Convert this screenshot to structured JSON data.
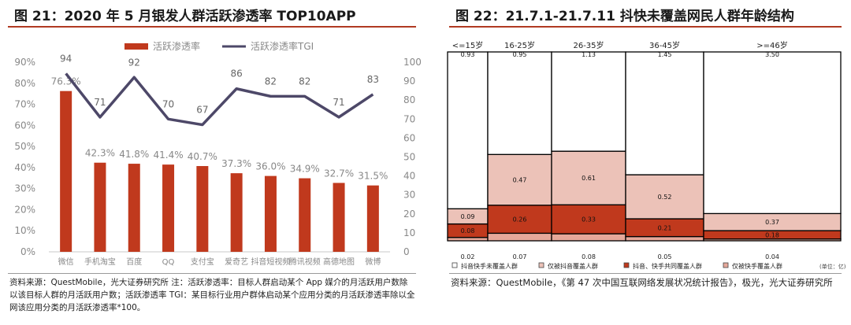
{
  "left": {
    "title": "图 21：2020 年 5 月银发人群活跃渗透率 TOP10APP",
    "note": "资料来源：QuestMobile，光大证券研究所 注：活跃渗透率：目标人群启动某个 App 媒介的月活跃用户数除以该目标人群的月活跃用户数；活跃渗透率 TGI：某目标行业用户群体启动某个应用分类的月活跃渗透率除以全网该应用分类的月活跃渗透率*100。"
  },
  "right": {
    "title": "图 22：21.7.1-21.7.11 抖快未覆盖网民人群年龄结构",
    "note": "资料来源：QuestMobile，《第 47 次中国互联网络发展状况统计报告》，极光，光大证券研究所"
  },
  "chart_data": [
    {
      "type": "bar",
      "categories": [
        "微信",
        "手机淘宝",
        "百度",
        "QQ",
        "支付宝",
        "爱奇艺",
        "抖音短视频",
        "腾讯视频",
        "高德地图",
        "微博"
      ],
      "series": [
        {
          "name": "活跃渗透率",
          "type": "bar",
          "axis": "left",
          "values": [
            76.3,
            42.3,
            41.8,
            41.4,
            40.7,
            37.3,
            36.0,
            34.9,
            32.7,
            31.5
          ],
          "labels": [
            "76.3%",
            "42.3%",
            "41.8%",
            "41.4%",
            "40.7%",
            "37.3%",
            "36.0%",
            "34.9%",
            "32.7%",
            "31.5%"
          ],
          "color": "#c0391d"
        },
        {
          "name": "活跃渗透率TGI",
          "type": "line",
          "axis": "right",
          "values": [
            94,
            71,
            92,
            70,
            67,
            86,
            82,
            82,
            71,
            83
          ],
          "color": "#4d4868"
        }
      ],
      "y_left": {
        "range": [
          0,
          90
        ],
        "ticks": [
          "0%",
          "10%",
          "20%",
          "30%",
          "40%",
          "50%",
          "60%",
          "70%",
          "80%",
          "90%"
        ]
      },
      "y_right": {
        "range": [
          0,
          100
        ],
        "ticks": [
          "0",
          "10",
          "20",
          "30",
          "40",
          "50",
          "60",
          "70",
          "80",
          "90",
          "100"
        ]
      },
      "legend_position": "top",
      "grid": false
    },
    {
      "type": "bar",
      "subtype": "marimekko",
      "categories": [
        "<=15岁",
        "16-25岁",
        "26-35岁",
        "36-45岁",
        ">=46岁"
      ],
      "column_totals": [
        "0.02",
        "0.07",
        "0.08",
        "0.05",
        "0.04"
      ],
      "series": [
        {
          "name": "抖音快手未覆盖人群",
          "color": "#ffffff",
          "values": [
            0.93,
            0.95,
            1.13,
            1.45,
            3.5
          ],
          "labels": [
            "0.93",
            "0.95",
            "1.13",
            "1.45",
            "3.50"
          ]
        },
        {
          "name": "仅被抖音覆盖人群",
          "color": "#ecc2b8",
          "values": [
            0.09,
            0.47,
            0.61,
            0.52,
            0.37
          ],
          "labels": [
            "0.09",
            "0.47",
            "0.61",
            "0.52",
            "0.37"
          ]
        },
        {
          "name": "抖音、快手共同覆盖人群",
          "color": "#c0391d",
          "values": [
            0.08,
            0.26,
            0.33,
            0.21,
            0.18
          ],
          "labels": [
            "0.08",
            "0.26",
            "0.33",
            "0.21",
            "0.18"
          ]
        },
        {
          "name": "仅被快手覆盖人群",
          "color": "#e6a89a",
          "values": [
            0.02,
            0.07,
            0.08,
            0.05,
            0.04
          ],
          "labels": [
            "",
            "",
            "",
            "",
            ""
          ]
        }
      ],
      "unit_label": "(单位：亿)",
      "legend_position": "bottom"
    }
  ]
}
